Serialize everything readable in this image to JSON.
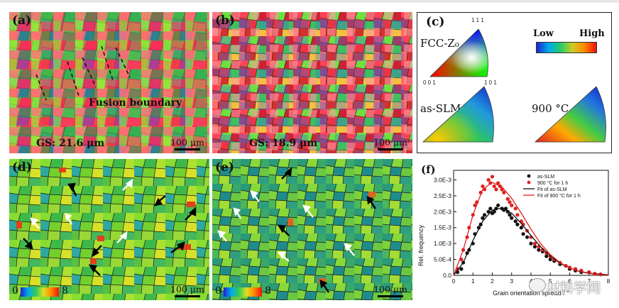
{
  "panels": {
    "a": {
      "label": "(a)",
      "gs": "GS: 21.6 μm",
      "scale": "100 μm",
      "annotation": "Fusion boundary"
    },
    "b": {
      "label": "(b)",
      "gs": "GS: 18.9 μm",
      "scale": "100 μm"
    },
    "c": {
      "label": "(c)",
      "ipf_label": "FCC-Z₀",
      "corner_111": "1 1 1",
      "corner_001": "0 0 1",
      "corner_101": "1 0 1",
      "legend_low": "Low",
      "legend_high": "High",
      "map1_label": "as-SLM",
      "map2_label": "900 °C"
    },
    "d": {
      "label": "(d)",
      "scale": "100 μm",
      "cb_min": "0",
      "cb_max": "8"
    },
    "e": {
      "label": "(e)",
      "scale": "100 μm",
      "cb_min": "0",
      "cb_max": "8"
    }
  },
  "chart_data": {
    "type": "scatter",
    "label": "(f)",
    "xlabel": "Grain orientation spread / °",
    "ylabel": "Rel. frequency",
    "xlim": [
      0,
      8
    ],
    "ylim": [
      0,
      0.0033
    ],
    "xticks": [
      "0",
      "1",
      "2",
      "3",
      "4",
      "5",
      "6",
      "7",
      "8"
    ],
    "yticks": [
      "0.0",
      "5.0E-4",
      "1.0E-3",
      "1.5E-3",
      "2.0E-3",
      "2.5E-3",
      "3.0E-3"
    ],
    "ytick_values": [
      0,
      0.0005,
      0.001,
      0.0015,
      0.002,
      0.0025,
      0.003
    ],
    "legend": [
      "as-SLM",
      "900 °C for 1 h",
      "Fit of as-SLM",
      "Fit of 900 °C for 1 h"
    ],
    "series": [
      {
        "name": "as-SLM",
        "color": "#111111",
        "kind": "points",
        "x": [
          0.2,
          0.4,
          0.5,
          0.7,
          0.8,
          1.0,
          1.1,
          1.3,
          1.4,
          1.5,
          1.6,
          1.8,
          1.9,
          2.0,
          2.1,
          2.2,
          2.3,
          2.5,
          2.6,
          2.7,
          2.8,
          2.9,
          3.0,
          3.2,
          3.3,
          3.5,
          3.6,
          3.8,
          4.0,
          4.2,
          4.4,
          4.6,
          4.8,
          5.0,
          5.2,
          5.5,
          5.8,
          6.0,
          6.3,
          6.6,
          7.0,
          7.3,
          7.6
        ],
        "y": [
          0.0001,
          0.0002,
          0.0004,
          0.0007,
          0.0008,
          0.001,
          0.0013,
          0.0015,
          0.0016,
          0.0018,
          0.0019,
          0.002,
          0.0021,
          0.00195,
          0.002,
          0.0021,
          0.0022,
          0.0021,
          0.00205,
          0.0021,
          0.002,
          0.0019,
          0.0018,
          0.0017,
          0.0016,
          0.0015,
          0.0013,
          0.0012,
          0.001,
          0.0009,
          0.0008,
          0.00075,
          0.0006,
          0.0005,
          0.00045,
          0.00035,
          0.0003,
          0.0002,
          0.00015,
          0.0001,
          0.0001,
          5e-05,
          3e-05
        ]
      },
      {
        "name": "900 °C for 1 h",
        "color": "#e02020",
        "kind": "points",
        "x": [
          0.2,
          0.4,
          0.5,
          0.7,
          0.8,
          1.0,
          1.1,
          1.2,
          1.4,
          1.5,
          1.6,
          1.8,
          1.9,
          2.0,
          2.1,
          2.2,
          2.3,
          2.4,
          2.5,
          2.6,
          2.8,
          2.9,
          3.0,
          3.2,
          3.3,
          3.5,
          3.6,
          3.8,
          4.0,
          4.2,
          4.4,
          4.6,
          4.8,
          5.0,
          5.2,
          5.5,
          5.8,
          6.0,
          6.3,
          6.6,
          7.0,
          7.3,
          7.6
        ],
        "y": [
          0.0002,
          0.0005,
          0.0008,
          0.0012,
          0.0015,
          0.0019,
          0.0022,
          0.0023,
          0.0026,
          0.0028,
          0.0027,
          0.003,
          0.0029,
          0.0031,
          0.0028,
          0.0027,
          0.0029,
          0.0028,
          0.0027,
          0.0026,
          0.0024,
          0.0023,
          0.0022,
          0.0021,
          0.0019,
          0.0017,
          0.0016,
          0.0014,
          0.0012,
          0.001,
          0.0009,
          0.0008,
          0.0007,
          0.0006,
          0.0005,
          0.0004,
          0.0003,
          0.00025,
          0.0002,
          0.00015,
          0.0001,
          5e-05,
          3e-05
        ]
      },
      {
        "name": "Fit of as-SLM",
        "color": "#111111",
        "kind": "line",
        "x": [
          0,
          0.5,
          1,
          1.5,
          2,
          2.5,
          3,
          3.5,
          4,
          4.5,
          5,
          5.5,
          6,
          6.5,
          7,
          7.5,
          8
        ],
        "y": [
          0,
          0.0004,
          0.0011,
          0.0017,
          0.00205,
          0.00212,
          0.00195,
          0.00163,
          0.00125,
          0.0009,
          0.0006,
          0.00038,
          0.00023,
          0.00013,
          7e-05,
          4e-05,
          2e-05
        ]
      },
      {
        "name": "Fit of 900 °C for 1 h",
        "color": "#e02020",
        "kind": "line",
        "x": [
          0,
          0.5,
          1,
          1.5,
          2,
          2.5,
          3,
          3.5,
          4,
          4.5,
          5,
          5.5,
          6,
          6.5,
          7,
          7.5,
          8
        ],
        "y": [
          0,
          0.0008,
          0.0019,
          0.0027,
          0.00292,
          0.00278,
          0.00242,
          0.00195,
          0.00145,
          0.001,
          0.00065,
          0.0004,
          0.00023,
          0.00012,
          6e-05,
          3e-05,
          1e-05
        ]
      }
    ]
  },
  "watermark": "材料学网"
}
